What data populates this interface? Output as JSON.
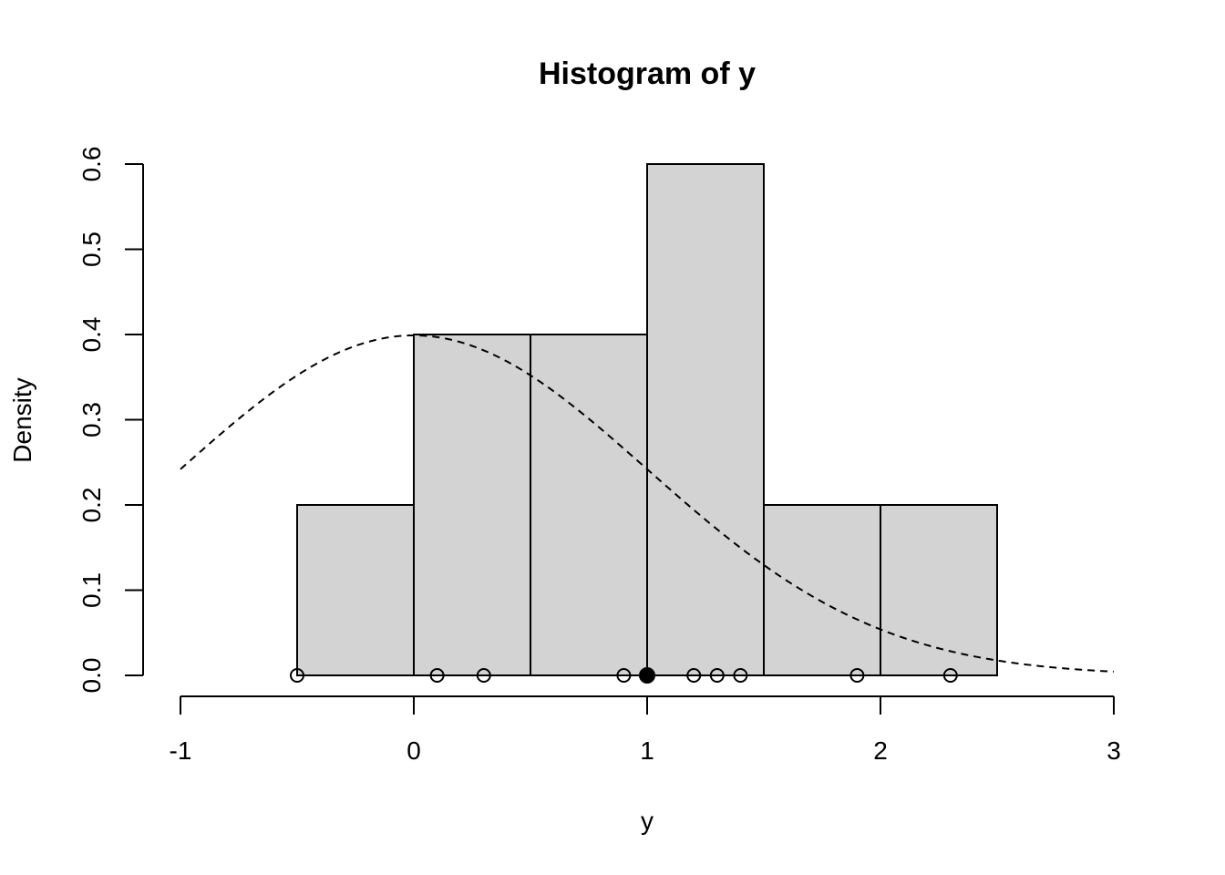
{
  "chart_data": {
    "type": "bar",
    "title": "Histogram of y",
    "xlabel": "y",
    "ylabel": "Density",
    "xlim": [
      -1,
      3
    ],
    "ylim": [
      0,
      0.6
    ],
    "x_ticks": [
      "-1",
      "0",
      "1",
      "2",
      "3"
    ],
    "y_ticks": [
      "0.0",
      "0.1",
      "0.2",
      "0.3",
      "0.4",
      "0.5",
      "0.6"
    ],
    "bins": [
      {
        "from": -0.5,
        "to": 0.0,
        "density": 0.2
      },
      {
        "from": 0.0,
        "to": 0.5,
        "density": 0.4
      },
      {
        "from": 0.5,
        "to": 1.0,
        "density": 0.4
      },
      {
        "from": 1.0,
        "to": 1.5,
        "density": 0.6
      },
      {
        "from": 1.5,
        "to": 2.0,
        "density": 0.2
      },
      {
        "from": 2.0,
        "to": 2.5,
        "density": 0.2
      }
    ],
    "density_curve": {
      "style": "dashed",
      "distribution": "normal",
      "mean": 0,
      "sd": 1,
      "x_from": -1,
      "x_to": 3
    },
    "points": [
      {
        "x": -0.5,
        "y": 0,
        "filled": false
      },
      {
        "x": 0.1,
        "y": 0,
        "filled": false
      },
      {
        "x": 0.3,
        "y": 0,
        "filled": false
      },
      {
        "x": 0.9,
        "y": 0,
        "filled": false
      },
      {
        "x": 1.0,
        "y": 0,
        "filled": true
      },
      {
        "x": 1.2,
        "y": 0,
        "filled": false
      },
      {
        "x": 1.3,
        "y": 0,
        "filled": false
      },
      {
        "x": 1.4,
        "y": 0,
        "filled": false
      },
      {
        "x": 1.9,
        "y": 0,
        "filled": false
      },
      {
        "x": 2.3,
        "y": 0,
        "filled": false
      }
    ],
    "grid": false,
    "bar_color": "#d3d3d3"
  }
}
